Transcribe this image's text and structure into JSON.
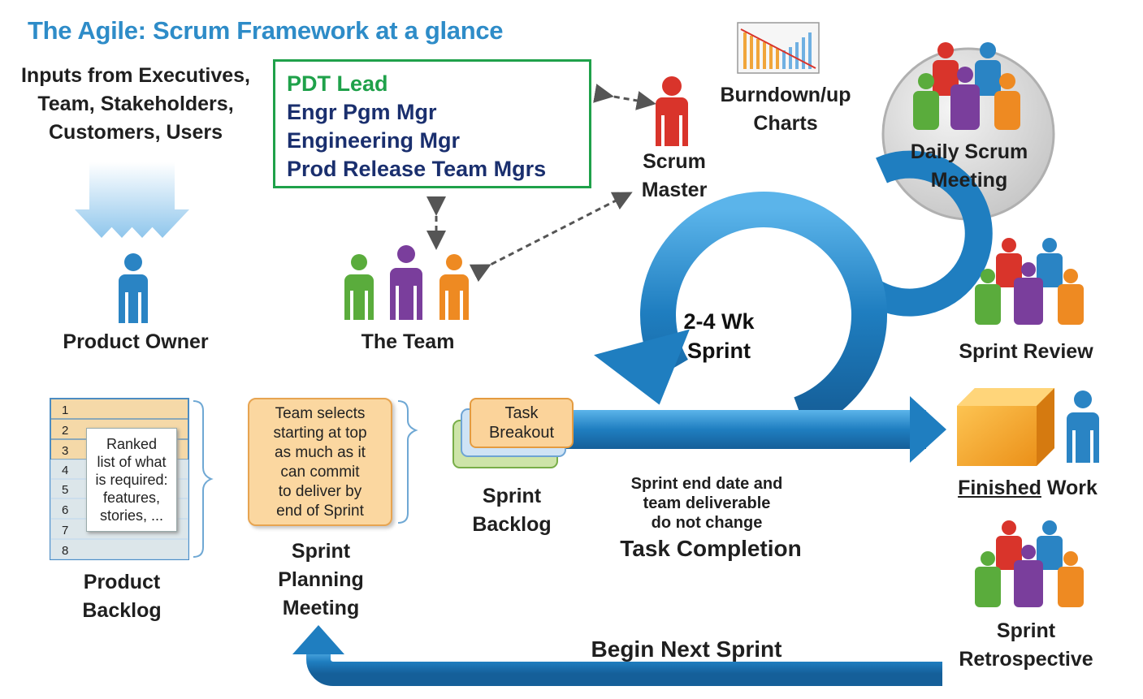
{
  "title": "The Agile: Scrum Framework at a glance",
  "inputs": [
    "Inputs from Executives,",
    "Team, Stakeholders,",
    "Customers, Users"
  ],
  "leadership_box": {
    "lead": "PDT Lead",
    "lines": [
      "Engr Pgm Mgr",
      "Engineering Mgr",
      "Prod Release Team Mgrs"
    ]
  },
  "roles": {
    "product_owner": "Product Owner",
    "team": "The Team",
    "scrum_master": [
      "Scrum",
      "Master"
    ]
  },
  "burndown": [
    "Burndown/up",
    "Charts"
  ],
  "daily_scrum": [
    "Daily Scrum",
    "Meeting"
  ],
  "sprint": {
    "line1": "2-4 Wk",
    "line2": "Sprint"
  },
  "sprint_review": "Sprint Review",
  "finished_work": {
    "underlined": "Finished",
    "rest": " Work"
  },
  "retrospective": [
    "Sprint",
    "Retrospective"
  ],
  "product_backlog": {
    "label": [
      "Product",
      "Backlog"
    ],
    "rows": [
      "1",
      "2",
      "3",
      "4",
      "5",
      "6",
      "7",
      "8"
    ],
    "note": [
      "Ranked",
      "list of what",
      "is required:",
      "features,",
      "stories, ..."
    ]
  },
  "sprint_planning": {
    "card": [
      "Team selects",
      "starting at top",
      "as much as it",
      "can commit",
      "to deliver by",
      "end of Sprint"
    ],
    "label": [
      "Sprint",
      "Planning",
      "Meeting"
    ]
  },
  "sprint_backlog": {
    "card": [
      "Task",
      "Breakout"
    ],
    "label": [
      "Sprint",
      "Backlog"
    ]
  },
  "fixed_note": [
    "Sprint end date and",
    "team deliverable",
    "do not change"
  ],
  "task_completion": "Task Completion",
  "begin_next": "Begin Next Sprint",
  "colors": {
    "title": "#2e8cc8",
    "green_border": "#1fa14a",
    "navy": "#1a2f6e",
    "arrow_blue": "#1f7ec0",
    "person_blue": "#2a84c4",
    "person_red": "#d9342b",
    "person_green": "#5aac3c",
    "person_purple": "#7a3e9c",
    "person_orange": "#ee8a22",
    "person_gray": "#808080"
  },
  "icons": [
    "down-arrows-icon",
    "person-icon",
    "people-group-icon",
    "bar-chart-icon",
    "cycle-arrow-icon",
    "box-icon",
    "double-arrow-icon"
  ]
}
